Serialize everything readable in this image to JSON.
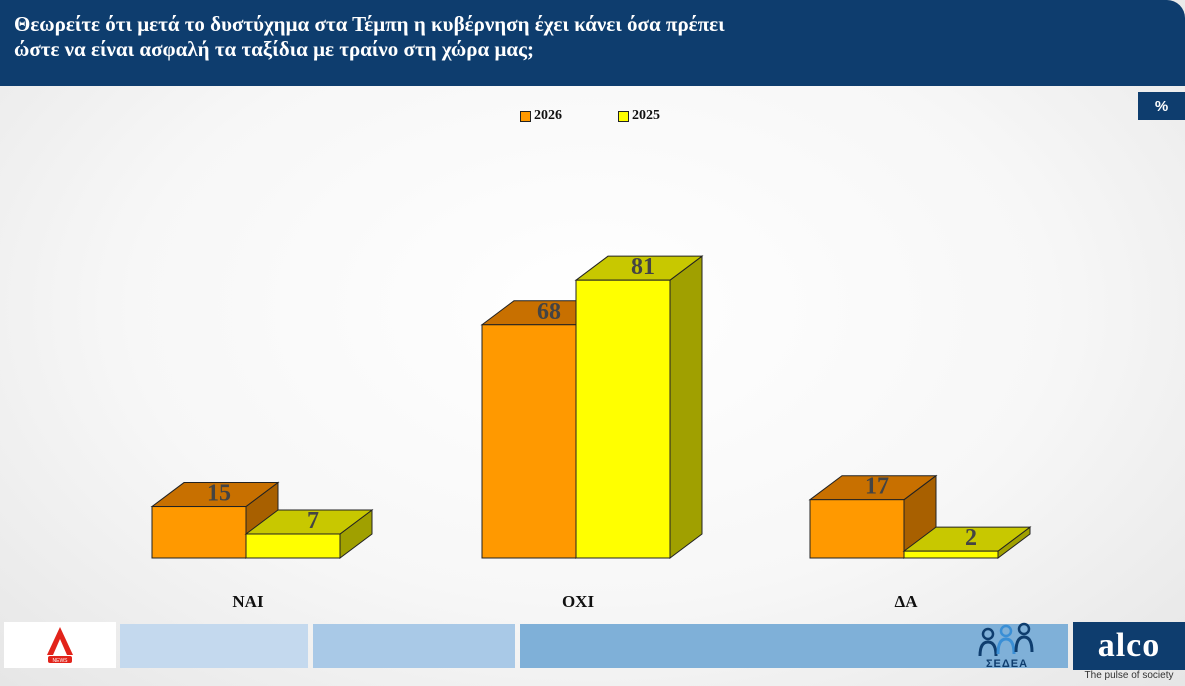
{
  "header": {
    "title_line1": "Θεωρείτε ότι μετά το δυστύχημα στα Τέμπη η κυβέρνηση έχει κάνει όσα πρέπει",
    "title_line2": "ώστε να είναι ασφαλή τα ταξίδια με τραίνο στη χώρα μας;"
  },
  "unit_badge": "%",
  "chart_data": {
    "type": "bar",
    "categories": [
      "ΝΑΙ",
      "ΟΧΙ",
      "ΔΑ"
    ],
    "series": [
      {
        "name": "2026",
        "values": [
          15,
          68,
          17
        ],
        "color": "#ff9900",
        "top_color": "#c87000",
        "side_color": "#a86000"
      },
      {
        "name": "2025",
        "values": [
          7,
          81,
          2
        ],
        "color": "#ffff00",
        "top_color": "#c8c800",
        "side_color": "#a0a000"
      }
    ],
    "legend_position": "top-center",
    "grid": false,
    "three_d": true
  },
  "footer": {
    "logo_left": "alpha-news-logo",
    "sedea_label": "ΣΕΔΕΑ",
    "alco_logo": "alco",
    "alco_tagline": "The pulse of society",
    "segment_colors": [
      "#c4d9ee",
      "#a9c9e7",
      "#7fb0d8"
    ]
  }
}
